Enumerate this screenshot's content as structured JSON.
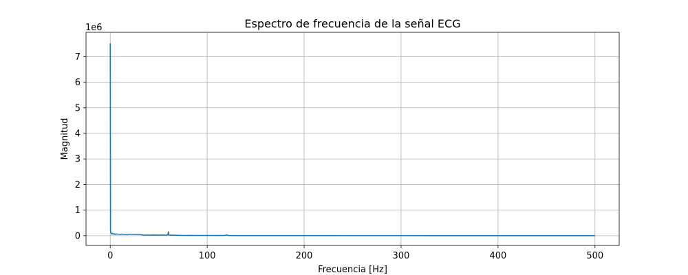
{
  "chart_data": {
    "type": "line",
    "title": "Espectro de frecuencia de la señal ECG",
    "xlabel": "Frecuencia [Hz]",
    "ylabel": "Magnitud",
    "y_offset_label": "1e6",
    "xlim": [
      -25,
      525
    ],
    "ylim": [
      -0.38,
      7.95
    ],
    "x_ticks": [
      0,
      100,
      200,
      300,
      400,
      500
    ],
    "y_ticks": [
      0,
      1,
      2,
      3,
      4,
      5,
      6,
      7
    ],
    "grid": true,
    "line_color": "#1f77b4",
    "series": [
      {
        "x": [
          0,
          0.3,
          0.6,
          1,
          1.5,
          2,
          3,
          4,
          5,
          6,
          8,
          10,
          12,
          15,
          18,
          20,
          25,
          30,
          32,
          35,
          38,
          40,
          45,
          50,
          55,
          58,
          59.5,
          60,
          60.5,
          62,
          65,
          70,
          75,
          80,
          90,
          100,
          110,
          118,
          120,
          122,
          130,
          150,
          200,
          250,
          300,
          350,
          400,
          450,
          500
        ],
        "y": [
          7.52,
          0.18,
          0.12,
          0.1,
          0.07,
          0.09,
          0.06,
          0.08,
          0.05,
          0.07,
          0.06,
          0.05,
          0.06,
          0.05,
          0.05,
          0.06,
          0.05,
          0.05,
          0.04,
          0.02,
          0.03,
          0.02,
          0.03,
          0.02,
          0.03,
          0.02,
          0.05,
          0.15,
          0.03,
          0.02,
          0.02,
          0.015,
          0.01,
          0.012,
          0.01,
          0.01,
          0.008,
          0.01,
          0.03,
          0.008,
          0.006,
          0.005,
          0.004,
          0.003,
          0.003,
          0.002,
          0.002,
          0.002,
          0.002
        ]
      }
    ]
  }
}
